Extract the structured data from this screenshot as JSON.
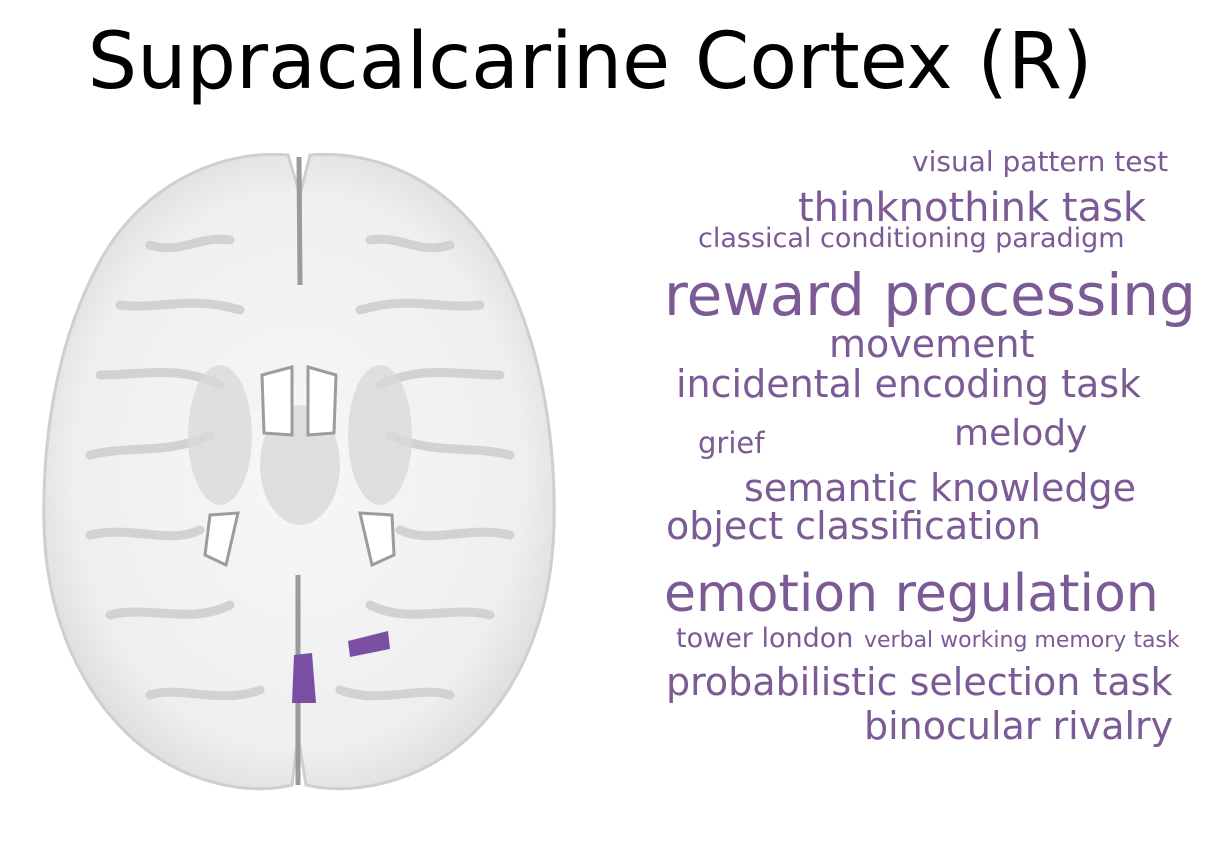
{
  "title": "Supracalcarine Cortex (R)",
  "colors": {
    "accent": "#7b5a95",
    "region": "#7a4fa3",
    "brain_fill": "#f1f1f1",
    "brain_shadow": "#c8c8c8"
  },
  "terms": [
    {
      "text": "visual pattern test"
    },
    {
      "text": "thinknothink task"
    },
    {
      "text": "classical conditioning paradigm"
    },
    {
      "text": "reward processing"
    },
    {
      "text": "movement"
    },
    {
      "text": "incidental encoding task"
    },
    {
      "text": "grief"
    },
    {
      "text": "melody"
    },
    {
      "text": "semantic knowledge"
    },
    {
      "text": "object classification"
    },
    {
      "text": "emotion regulation"
    },
    {
      "text": "tower london"
    },
    {
      "text": "verbal working memory task"
    },
    {
      "text": "probabilistic selection task"
    },
    {
      "text": "binocular rivalry"
    }
  ]
}
